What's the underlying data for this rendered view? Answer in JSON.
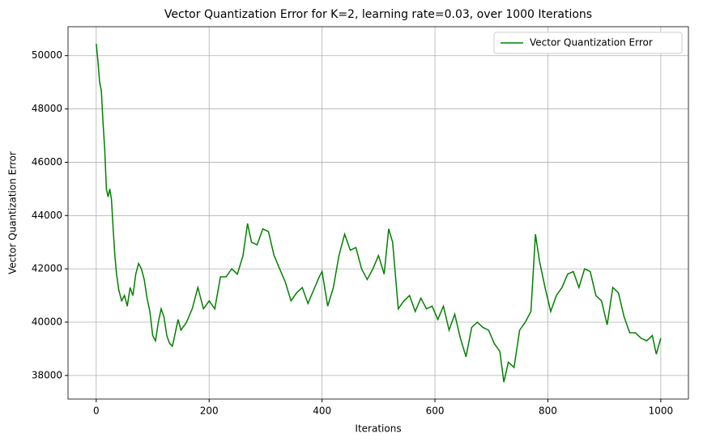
{
  "chart_data": {
    "type": "line",
    "title": "Vector Quantization Error for K=2, learning rate=0.03, over 1000 Iterations",
    "x_label": "Iterations",
    "y_label": "Vector Quantization Error",
    "x": [
      0,
      3,
      6,
      9,
      12,
      15,
      18,
      21,
      24,
      27,
      30,
      33,
      36,
      40,
      45,
      50,
      55,
      60,
      65,
      70,
      75,
      80,
      85,
      90,
      95,
      100,
      105,
      110,
      115,
      120,
      125,
      130,
      135,
      140,
      145,
      150,
      160,
      170,
      180,
      190,
      200,
      210,
      220,
      230,
      240,
      250,
      260,
      268,
      275,
      285,
      295,
      305,
      315,
      325,
      335,
      345,
      355,
      365,
      375,
      385,
      395,
      400,
      410,
      420,
      430,
      440,
      450,
      460,
      470,
      480,
      490,
      500,
      510,
      518,
      525,
      535,
      545,
      555,
      565,
      575,
      585,
      595,
      605,
      615,
      625,
      635,
      645,
      655,
      665,
      675,
      685,
      695,
      705,
      715,
      722,
      730,
      740,
      750,
      760,
      770,
      778,
      785,
      795,
      805,
      815,
      825,
      835,
      845,
      855,
      865,
      875,
      885,
      895,
      905,
      915,
      925,
      935,
      945,
      955,
      965,
      975,
      985,
      992,
      1000
    ],
    "series": [
      {
        "name": "Vector Quantization Error",
        "color": "#008000",
        "values": [
          50450,
          49800,
          49000,
          48700,
          47500,
          46500,
          45000,
          44700,
          45000,
          44600,
          43500,
          42500,
          41800,
          41200,
          40800,
          41000,
          40600,
          41300,
          41000,
          41800,
          42200,
          42000,
          41600,
          40900,
          40400,
          39500,
          39300,
          40000,
          40500,
          40200,
          39500,
          39200,
          39100,
          39600,
          40100,
          39700,
          40000,
          40500,
          41300,
          40500,
          40800,
          40500,
          41700,
          41700,
          42000,
          41800,
          42500,
          43700,
          43000,
          42900,
          43500,
          43400,
          42500,
          42000,
          41500,
          40800,
          41100,
          41300,
          40700,
          41200,
          41700,
          41900,
          40600,
          41300,
          42500,
          43300,
          42700,
          42800,
          42000,
          41600,
          42000,
          42500,
          41800,
          43500,
          43000,
          40500,
          40800,
          41000,
          40400,
          40900,
          40500,
          40600,
          40100,
          40600,
          39700,
          40300,
          39400,
          38700,
          39800,
          40000,
          39800,
          39700,
          39200,
          38900,
          37750,
          38500,
          38300,
          39700,
          40000,
          40400,
          43300,
          42300,
          41300,
          40400,
          41000,
          41300,
          41800,
          41900,
          41300,
          42000,
          41900,
          41000,
          40800,
          39900,
          41300,
          41100,
          40200,
          39600,
          39600,
          39400,
          39300,
          39500,
          38800,
          39400
        ]
      }
    ],
    "xlim": [
      -49.95,
      1048.95
    ],
    "ylim": [
      37115,
      51085
    ],
    "xticks": [
      0,
      200,
      400,
      600,
      800,
      1000
    ],
    "yticks": [
      38000,
      40000,
      42000,
      44000,
      46000,
      48000,
      50000
    ],
    "grid": true,
    "legend": "upper right"
  }
}
